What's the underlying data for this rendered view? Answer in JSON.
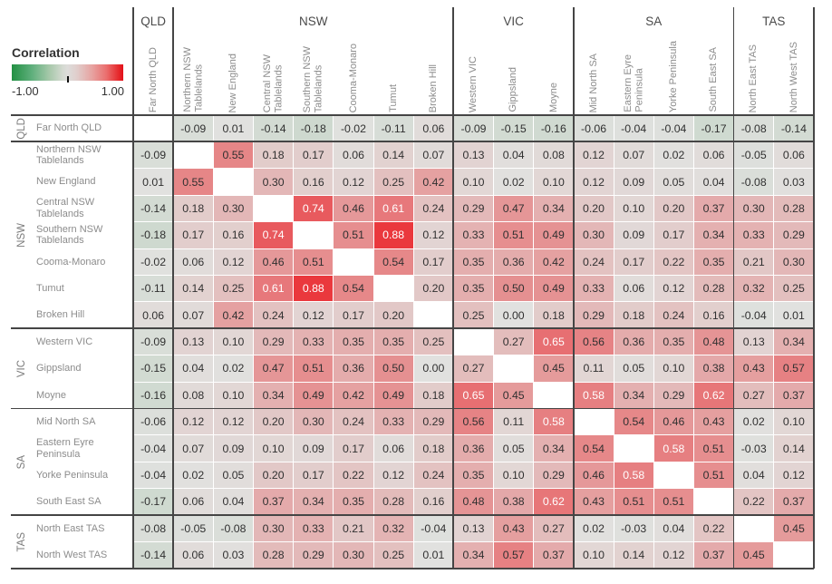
{
  "legend": {
    "title": "Correlation",
    "min_label": "-1.00",
    "max_label": "1.00",
    "colors": {
      "negative_end": "#22904f",
      "neutral": "#e1e1df",
      "positive_end": "#ec1a20"
    }
  },
  "chart_data": {
    "type": "heatmap",
    "title": "Correlation",
    "value_range": [
      -1.0,
      1.0
    ],
    "legend_position": "top-left",
    "column_groups": [
      {
        "name": "QLD",
        "count": 1
      },
      {
        "name": "NSW",
        "count": 7
      },
      {
        "name": "VIC",
        "count": 3
      },
      {
        "name": "SA",
        "count": 4
      },
      {
        "name": "TAS",
        "count": 2
      }
    ],
    "labels": [
      "Far North QLD",
      "Northern NSW\nTablelands",
      "New England",
      "Central NSW\nTablelands",
      "Southern NSW\nTablelands",
      "Cooma-Monaro",
      "Tumut",
      "Broken Hill",
      "Western VIC",
      "Gippsland",
      "Moyne",
      "Mid North SA",
      "Eastern Eyre\nPeninsula",
      "Yorke Peninsula",
      "South East SA",
      "North East TAS",
      "North West TAS"
    ],
    "matrix": [
      [
        null,
        -0.09,
        0.01,
        -0.14,
        -0.18,
        -0.02,
        -0.11,
        0.06,
        -0.09,
        -0.15,
        -0.16,
        -0.06,
        -0.04,
        -0.04,
        -0.17,
        -0.08,
        -0.14
      ],
      [
        -0.09,
        null,
        0.55,
        0.18,
        0.17,
        0.06,
        0.14,
        0.07,
        0.13,
        0.04,
        0.08,
        0.12,
        0.07,
        0.02,
        0.06,
        -0.05,
        0.06
      ],
      [
        0.01,
        0.55,
        null,
        0.3,
        0.16,
        0.12,
        0.25,
        0.42,
        0.1,
        0.02,
        0.1,
        0.12,
        0.09,
        0.05,
        0.04,
        -0.08,
        0.03
      ],
      [
        -0.14,
        0.18,
        0.3,
        null,
        0.74,
        0.46,
        0.61,
        0.24,
        0.29,
        0.47,
        0.34,
        0.2,
        0.1,
        0.2,
        0.37,
        0.3,
        0.28
      ],
      [
        -0.18,
        0.17,
        0.16,
        0.74,
        null,
        0.51,
        0.88,
        0.12,
        0.33,
        0.51,
        0.49,
        0.3,
        0.09,
        0.17,
        0.34,
        0.33,
        0.29
      ],
      [
        -0.02,
        0.06,
        0.12,
        0.46,
        0.51,
        null,
        0.54,
        0.17,
        0.35,
        0.36,
        0.42,
        0.24,
        0.17,
        0.22,
        0.35,
        0.21,
        0.3
      ],
      [
        -0.11,
        0.14,
        0.25,
        0.61,
        0.88,
        0.54,
        null,
        0.2,
        0.35,
        0.5,
        0.49,
        0.33,
        0.06,
        0.12,
        0.28,
        0.32,
        0.25
      ],
      [
        0.06,
        0.07,
        0.42,
        0.24,
        0.12,
        0.17,
        0.2,
        null,
        0.25,
        0.0,
        0.18,
        0.29,
        0.18,
        0.24,
        0.16,
        -0.04,
        0.01
      ],
      [
        -0.09,
        0.13,
        0.1,
        0.29,
        0.33,
        0.35,
        0.35,
        0.25,
        null,
        0.27,
        0.65,
        0.56,
        0.36,
        0.35,
        0.48,
        0.13,
        0.34
      ],
      [
        -0.15,
        0.04,
        0.02,
        0.47,
        0.51,
        0.36,
        0.5,
        0.0,
        0.27,
        null,
        0.45,
        0.11,
        0.05,
        0.1,
        0.38,
        0.43,
        0.57
      ],
      [
        -0.16,
        0.08,
        0.1,
        0.34,
        0.49,
        0.42,
        0.49,
        0.18,
        0.65,
        0.45,
        null,
        0.58,
        0.34,
        0.29,
        0.62,
        0.27,
        0.37
      ],
      [
        -0.06,
        0.12,
        0.12,
        0.2,
        0.3,
        0.24,
        0.33,
        0.29,
        0.56,
        0.11,
        0.58,
        null,
        0.54,
        0.46,
        0.43,
        0.02,
        0.1
      ],
      [
        -0.04,
        0.07,
        0.09,
        0.1,
        0.09,
        0.17,
        0.06,
        0.18,
        0.36,
        0.05,
        0.34,
        0.54,
        null,
        0.58,
        0.51,
        -0.03,
        0.14
      ],
      [
        -0.04,
        0.02,
        0.05,
        0.2,
        0.17,
        0.22,
        0.12,
        0.24,
        0.35,
        0.1,
        0.29,
        0.46,
        0.58,
        null,
        0.51,
        0.04,
        0.12
      ],
      [
        -0.17,
        0.06,
        0.04,
        0.37,
        0.34,
        0.35,
        0.28,
        0.16,
        0.48,
        0.38,
        0.62,
        0.43,
        0.51,
        0.51,
        null,
        0.22,
        0.37
      ],
      [
        -0.08,
        -0.05,
        -0.08,
        0.3,
        0.33,
        0.21,
        0.32,
        -0.04,
        0.13,
        0.43,
        0.27,
        0.02,
        -0.03,
        0.04,
        0.22,
        null,
        0.45
      ],
      [
        -0.14,
        0.06,
        0.03,
        0.28,
        0.29,
        0.3,
        0.25,
        0.01,
        0.34,
        0.57,
        0.37,
        0.1,
        0.14,
        0.12,
        0.37,
        0.45,
        null
      ]
    ]
  }
}
